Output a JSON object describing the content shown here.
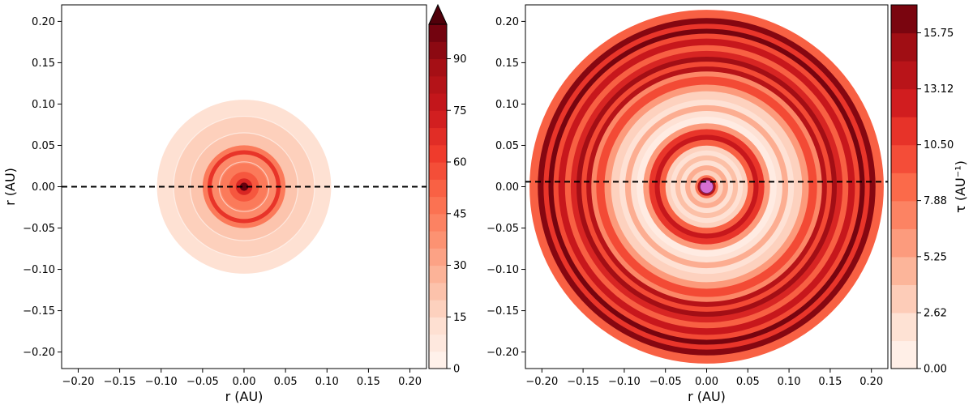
{
  "chart_data": [
    {
      "type": "heatmap",
      "panel": "left",
      "xlabel": "r (AU)",
      "ylabel": "r (AU)",
      "xlim": [
        -0.22,
        0.22
      ],
      "ylim": [
        -0.22,
        0.22
      ],
      "xticks": [
        -0.2,
        -0.15,
        -0.1,
        -0.05,
        0.0,
        0.05,
        0.1,
        0.15,
        0.2
      ],
      "xtick_labels": [
        "−0.20",
        "−0.15",
        "−0.10",
        "−0.05",
        "0.00",
        "0.05",
        "0.10",
        "0.15",
        "0.20"
      ],
      "yticks": [
        0.2,
        0.15,
        0.1,
        0.05,
        0.0,
        -0.05,
        -0.1,
        -0.15,
        -0.2
      ],
      "ytick_labels": [
        "0.20",
        "0.15",
        "0.10",
        "0.05",
        "0.00",
        "−0.05",
        "−0.10",
        "−0.15",
        "−0.20"
      ],
      "disk_outer_radius": 0.105,
      "dashed_line_y": 0.0,
      "colorbar": {
        "vmin": 0,
        "vmax": 100,
        "levels": 20,
        "extend": "max",
        "ticks": [
          0,
          15,
          30,
          45,
          60,
          75,
          90
        ],
        "tick_labels": [
          "0",
          "15",
          "30",
          "45",
          "60",
          "75",
          "90"
        ],
        "label": ""
      },
      "rings": [
        {
          "r_outer": 0.105,
          "value": 12
        },
        {
          "r_outer": 0.085,
          "value": 18
        },
        {
          "r_outer": 0.065,
          "value": 22
        },
        {
          "r_outer": 0.05,
          "value": 45
        },
        {
          "r_outer": 0.044,
          "value": 65
        },
        {
          "r_outer": 0.039,
          "value": 40
        },
        {
          "r_outer": 0.028,
          "value": 45
        },
        {
          "r_outer": 0.018,
          "value": 55
        },
        {
          "r_outer": 0.01,
          "value": 70
        },
        {
          "r_outer": 0.005,
          "value": 100
        }
      ],
      "highlight_rings": [
        0.065,
        0.03,
        0.085
      ]
    },
    {
      "type": "heatmap",
      "panel": "right",
      "xlabel": "r (AU)",
      "ylabel": "",
      "xlim": [
        -0.22,
        0.22
      ],
      "ylim": [
        -0.22,
        0.22
      ],
      "xticks": [
        -0.2,
        -0.15,
        -0.1,
        -0.05,
        0.0,
        0.05,
        0.1,
        0.15,
        0.2
      ],
      "xtick_labels": [
        "−0.20",
        "−0.15",
        "−0.10",
        "−0.05",
        "0.00",
        "0.05",
        "0.10",
        "0.15",
        "0.20"
      ],
      "yticks": [
        0.2,
        0.15,
        0.1,
        0.05,
        0.0,
        -0.05,
        -0.1,
        -0.15,
        -0.2
      ],
      "ytick_labels": [
        "0.20",
        "0.15",
        "0.10",
        "0.05",
        "0.00",
        "−0.05",
        "−0.10",
        "−0.15",
        "−0.20"
      ],
      "disk_outer_radius": 0.215,
      "dashed_line_y": 0.006,
      "central_body": {
        "radius": 0.008,
        "color": "#d66fd2"
      },
      "colorbar": {
        "vmin": 0,
        "vmax": 17.06,
        "levels": 13,
        "extend": "neither",
        "ticks": [
          0.0,
          2.62,
          5.25,
          7.88,
          10.5,
          13.12,
          15.75
        ],
        "tick_labels": [
          "0.00",
          "2.62",
          "5.25",
          "7.88",
          "10.50",
          "13.12",
          "15.75"
        ],
        "label": "τ  (AU⁻¹)"
      },
      "rings": [
        {
          "r_outer": 0.215,
          "value": 9
        },
        {
          "r_outer": 0.205,
          "value": 16
        },
        {
          "r_outer": 0.198,
          "value": 11
        },
        {
          "r_outer": 0.192,
          "value": 16.5
        },
        {
          "r_outer": 0.186,
          "value": 10
        },
        {
          "r_outer": 0.18,
          "value": 13
        },
        {
          "r_outer": 0.172,
          "value": 9
        },
        {
          "r_outer": 0.165,
          "value": 12
        },
        {
          "r_outer": 0.158,
          "value": 15
        },
        {
          "r_outer": 0.152,
          "value": 10
        },
        {
          "r_outer": 0.146,
          "value": 14
        },
        {
          "r_outer": 0.14,
          "value": 7
        },
        {
          "r_outer": 0.134,
          "value": 10
        },
        {
          "r_outer": 0.124,
          "value": 6
        },
        {
          "r_outer": 0.116,
          "value": 3
        },
        {
          "r_outer": 0.106,
          "value": 2
        },
        {
          "r_outer": 0.099,
          "value": 5
        },
        {
          "r_outer": 0.092,
          "value": 2
        },
        {
          "r_outer": 0.085,
          "value": 1
        },
        {
          "r_outer": 0.077,
          "value": 6
        },
        {
          "r_outer": 0.07,
          "value": 11
        },
        {
          "r_outer": 0.063,
          "value": 13
        },
        {
          "r_outer": 0.057,
          "value": 9
        },
        {
          "r_outer": 0.05,
          "value": 3
        },
        {
          "r_outer": 0.044,
          "value": 2
        },
        {
          "r_outer": 0.038,
          "value": 4
        },
        {
          "r_outer": 0.032,
          "value": 2
        },
        {
          "r_outer": 0.026,
          "value": 5
        },
        {
          "r_outer": 0.02,
          "value": 3
        },
        {
          "r_outer": 0.014,
          "value": 8
        },
        {
          "r_outer": 0.011,
          "value": 14
        }
      ]
    }
  ]
}
